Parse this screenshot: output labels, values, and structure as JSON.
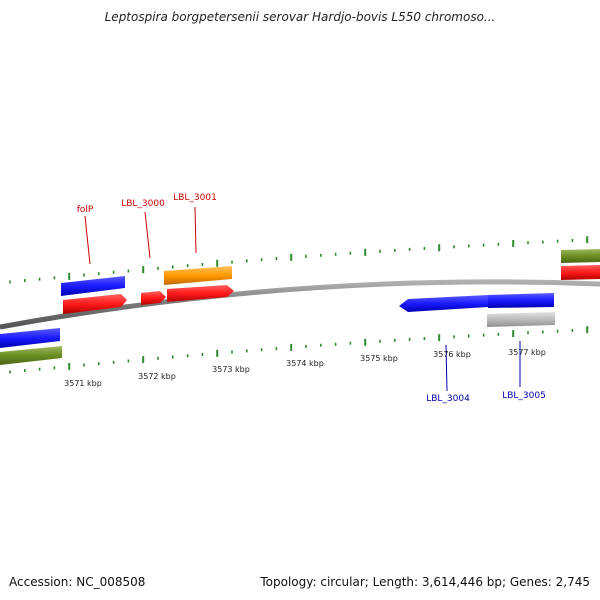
{
  "title": "Leptospira borgpetersenii serovar Hardjo-bovis L550 chromoso...",
  "footer": {
    "accession": "Accession: NC_008508",
    "summary": "Topology: circular; Length: 3,614,446 bp; Genes: 2,745"
  },
  "colors": {
    "plus_strand_label": "#cc0000",
    "minus_strand_label": "#0000aa",
    "tick": "#2e8b2e",
    "backbone": "#888888",
    "blue": "#1a1aff",
    "red": "#ff1a1a",
    "orange": "#ff9900",
    "olive": "#6b8e23",
    "gray": "#bbbbbb"
  },
  "scale_labels": [
    "3571 kbp",
    "3572 kbp",
    "3573 kbp",
    "3574 kbp",
    "3575 kbp",
    "3576 kbp",
    "3577 kbp"
  ],
  "genes_top": [
    {
      "label": "folP",
      "name": "gene-label-folP"
    },
    {
      "label": "LBL_3000",
      "name": "gene-label-LBL_3000"
    },
    {
      "label": "LBL_3001",
      "name": "gene-label-LBL_3001"
    }
  ],
  "genes_bottom": [
    {
      "label": "LBL_3004",
      "name": "gene-label-LBL_3004"
    },
    {
      "label": "LBL_3005",
      "name": "gene-label-LBL_3005"
    }
  ]
}
